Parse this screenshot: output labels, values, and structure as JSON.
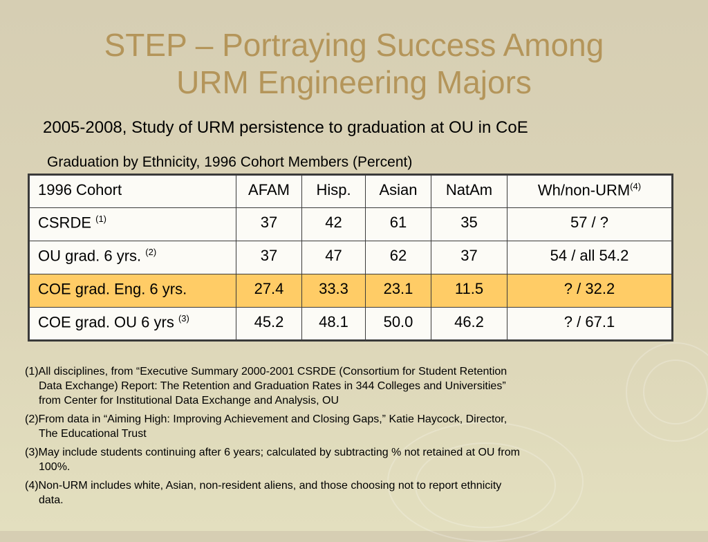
{
  "title": {
    "line1": "STEP – Portraying Success Among",
    "line2": "URM Engineering Majors"
  },
  "subtitle": "2005-2008, Study of URM persistence to graduation at OU in CoE",
  "table_caption": "Graduation by Ethnicity, 1996 Cohort Members (Percent)",
  "table": {
    "header": {
      "c0": "1996 Cohort",
      "c1": "AFAM",
      "c2": "Hisp.",
      "c3": "Asian",
      "c4": "NatAm",
      "c5": "Wh/non-URM",
      "c5_sup": "(4)"
    },
    "rows": [
      {
        "label": "CSRDE ",
        "sup": "(1)",
        "v1": "37",
        "v2": "42",
        "v3": "61",
        "v4": "35",
        "v5": "57 / ?"
      },
      {
        "label": "OU grad. 6 yrs. ",
        "sup": "(2)",
        "v1": "37",
        "v2": "47",
        "v3": "62",
        "v4": "37",
        "v5": "54 / all 54.2"
      },
      {
        "label": "COE grad. Eng. 6 yrs.",
        "sup": "",
        "v1": "27.4",
        "v2": "33.3",
        "v3": "23.1",
        "v4": "11.5",
        "v5": "? / 32.2"
      },
      {
        "label": "COE grad. OU 6 yrs ",
        "sup": "(3)",
        "v1": "45.2",
        "v2": "48.1",
        "v3": "50.0",
        "v4": "46.2",
        "v5": "? / 67.1"
      }
    ],
    "highlight_color": "#ffcc66"
  },
  "notes": [
    {
      "l1": "(1)All disciplines, from “Executive Summary 2000-2001 CSRDE (Consortium for Student Retention",
      "l2": "Data Exchange) Report: The Retention and Graduation Rates in 344 Colleges and Universities”",
      "l3": "from Center for Institutional Data Exchange and Analysis, OU"
    },
    {
      "l1": "(2)From data in “Aiming High: Improving Achievement and Closing Gaps,” Katie Haycock, Director,",
      "l2": "The Educational Trust"
    },
    {
      "l1": "(3)May include students continuing after 6 years; calculated by subtracting % not retained at OU from",
      "l2": "100%."
    },
    {
      "l1": "(4)Non-URM includes white, Asian, non-resident aliens, and those choosing not to report ethnicity",
      "l2": "data."
    }
  ],
  "colors": {
    "title": "#b4955a",
    "background": "#d6ceb3"
  }
}
